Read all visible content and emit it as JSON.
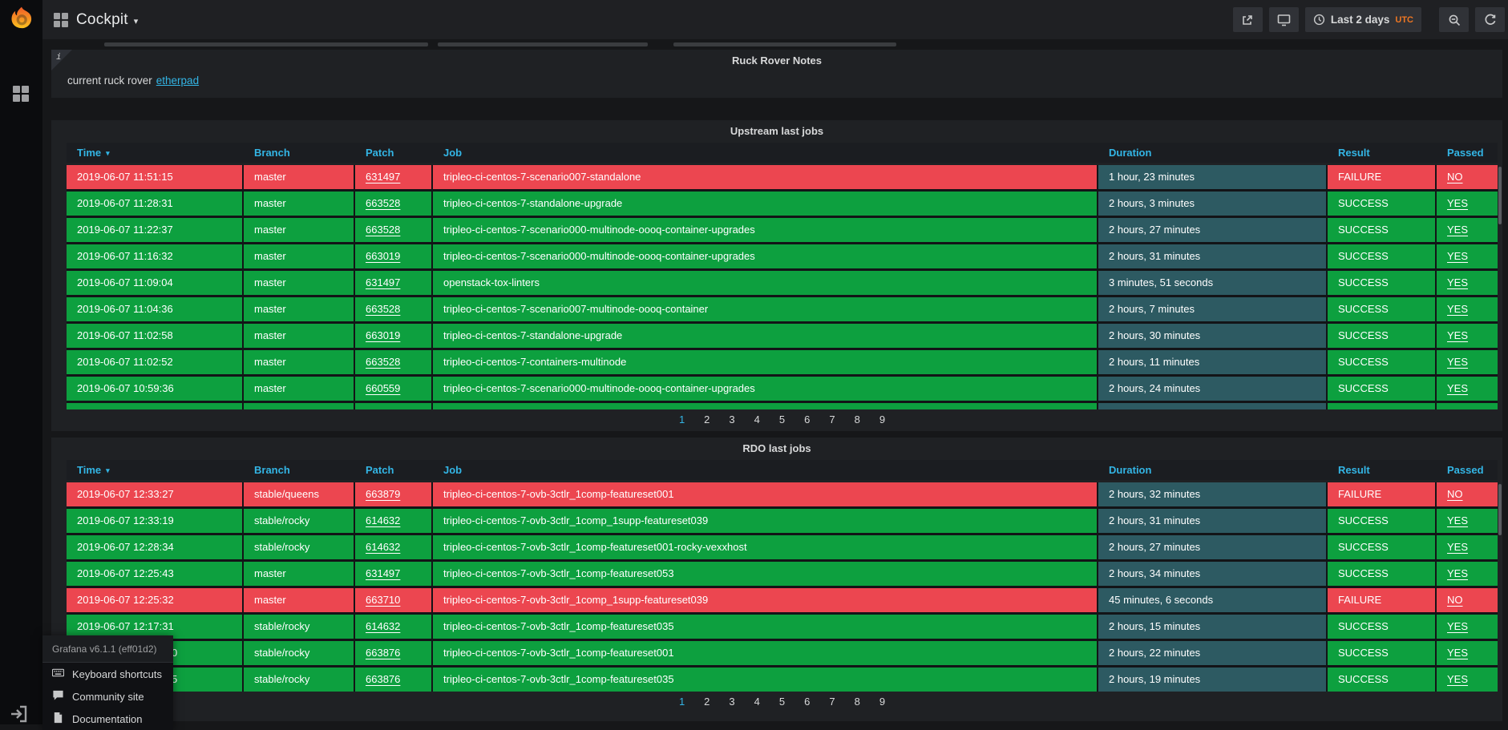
{
  "navbar": {
    "title": "Cockpit",
    "time_range": "Last 2 days",
    "time_zone": "UTC",
    "icons": [
      "dashboard-grid",
      "share",
      "tv-mode",
      "clock",
      "zoom-out",
      "refresh"
    ]
  },
  "sidebar": {
    "icons": [
      "grafana-logo",
      "dashboards",
      "sign-in"
    ]
  },
  "help_menu": {
    "version": "Grafana v6.1.1 (eff01d2)",
    "items": [
      {
        "icon": "keyboard",
        "label": "Keyboard shortcuts"
      },
      {
        "icon": "comment",
        "label": "Community site"
      },
      {
        "icon": "document",
        "label": "Documentation"
      }
    ]
  },
  "colors": {
    "success_green": "#0da03f",
    "failure_red": "#ec4650",
    "duration_teal": "#2d5a62",
    "accent_cyan": "#33b5e5",
    "utc_orange": "#ee7622"
  },
  "panels": {
    "notes": {
      "title": "Ruck Rover Notes",
      "text": "current ruck rover",
      "link": "etherpad"
    },
    "upstream": {
      "title": "Upstream last jobs",
      "columns": [
        "Time",
        "Branch",
        "Patch",
        "Job",
        "Duration",
        "Result",
        "Passed"
      ],
      "sorted_by": "Time",
      "rows": [
        {
          "time": "2019-06-07 11:51:15",
          "branch": "master",
          "patch": "631497",
          "job": "tripleo-ci-centos-7-scenario007-standalone",
          "duration": "1 hour, 23 minutes",
          "result": "FAILURE",
          "passed": "NO",
          "status": "failure"
        },
        {
          "time": "2019-06-07 11:28:31",
          "branch": "master",
          "patch": "663528",
          "job": "tripleo-ci-centos-7-standalone-upgrade",
          "duration": "2 hours, 3 minutes",
          "result": "SUCCESS",
          "passed": "YES",
          "status": "success"
        },
        {
          "time": "2019-06-07 11:22:37",
          "branch": "master",
          "patch": "663528",
          "job": "tripleo-ci-centos-7-scenario000-multinode-oooq-container-upgrades",
          "duration": "2 hours, 27 minutes",
          "result": "SUCCESS",
          "passed": "YES",
          "status": "success"
        },
        {
          "time": "2019-06-07 11:16:32",
          "branch": "master",
          "patch": "663019",
          "job": "tripleo-ci-centos-7-scenario000-multinode-oooq-container-upgrades",
          "duration": "2 hours, 31 minutes",
          "result": "SUCCESS",
          "passed": "YES",
          "status": "success"
        },
        {
          "time": "2019-06-07 11:09:04",
          "branch": "master",
          "patch": "631497",
          "job": "openstack-tox-linters",
          "duration": "3 minutes, 51 seconds",
          "result": "SUCCESS",
          "passed": "YES",
          "status": "success"
        },
        {
          "time": "2019-06-07 11:04:36",
          "branch": "master",
          "patch": "663528",
          "job": "tripleo-ci-centos-7-scenario007-multinode-oooq-container",
          "duration": "2 hours, 7 minutes",
          "result": "SUCCESS",
          "passed": "YES",
          "status": "success"
        },
        {
          "time": "2019-06-07 11:02:58",
          "branch": "master",
          "patch": "663019",
          "job": "tripleo-ci-centos-7-standalone-upgrade",
          "duration": "2 hours, 30 minutes",
          "result": "SUCCESS",
          "passed": "YES",
          "status": "success"
        },
        {
          "time": "2019-06-07 11:02:52",
          "branch": "master",
          "patch": "663528",
          "job": "tripleo-ci-centos-7-containers-multinode",
          "duration": "2 hours, 11 minutes",
          "result": "SUCCESS",
          "passed": "YES",
          "status": "success"
        },
        {
          "time": "2019-06-07 10:59:36",
          "branch": "master",
          "patch": "660559",
          "job": "tripleo-ci-centos-7-scenario000-multinode-oooq-container-upgrades",
          "duration": "2 hours, 24 minutes",
          "result": "SUCCESS",
          "passed": "YES",
          "status": "success"
        }
      ],
      "has_partial_row": true,
      "pagination": [
        "1",
        "2",
        "3",
        "4",
        "5",
        "6",
        "7",
        "8",
        "9"
      ],
      "active_page": "1"
    },
    "rdo": {
      "title": "RDO last jobs",
      "columns": [
        "Time",
        "Branch",
        "Patch",
        "Job",
        "Duration",
        "Result",
        "Passed"
      ],
      "sorted_by": "Time",
      "rows": [
        {
          "time": "2019-06-07 12:33:27",
          "branch": "stable/queens",
          "patch": "663879",
          "job": "tripleo-ci-centos-7-ovb-3ctlr_1comp-featureset001",
          "duration": "2 hours, 32 minutes",
          "result": "FAILURE",
          "passed": "NO",
          "status": "failure"
        },
        {
          "time": "2019-06-07 12:33:19",
          "branch": "stable/rocky",
          "patch": "614632",
          "job": "tripleo-ci-centos-7-ovb-3ctlr_1comp_1supp-featureset039",
          "duration": "2 hours, 31 minutes",
          "result": "SUCCESS",
          "passed": "YES",
          "status": "success"
        },
        {
          "time": "2019-06-07 12:28:34",
          "branch": "stable/rocky",
          "patch": "614632",
          "job": "tripleo-ci-centos-7-ovb-3ctlr_1comp-featureset001-rocky-vexxhost",
          "duration": "2 hours, 27 minutes",
          "result": "SUCCESS",
          "passed": "YES",
          "status": "success"
        },
        {
          "time": "2019-06-07 12:25:43",
          "branch": "master",
          "patch": "631497",
          "job": "tripleo-ci-centos-7-ovb-3ctlr_1comp-featureset053",
          "duration": "2 hours, 34 minutes",
          "result": "SUCCESS",
          "passed": "YES",
          "status": "success"
        },
        {
          "time": "2019-06-07 12:25:32",
          "branch": "master",
          "patch": "663710",
          "job": "tripleo-ci-centos-7-ovb-3ctlr_1comp_1supp-featureset039",
          "duration": "45 minutes, 6 seconds",
          "result": "FAILURE",
          "passed": "NO",
          "status": "failure"
        },
        {
          "time": "2019-06-07 12:17:31",
          "branch": "stable/rocky",
          "patch": "614632",
          "job": "tripleo-ci-centos-7-ovb-3ctlr_1comp-featureset035",
          "duration": "2 hours, 15 minutes",
          "result": "SUCCESS",
          "passed": "YES",
          "status": "success"
        },
        {
          "time": "0",
          "time_obscured": true,
          "branch": "stable/rocky",
          "patch": "663876",
          "job": "tripleo-ci-centos-7-ovb-3ctlr_1comp-featureset001",
          "duration": "2 hours, 22 minutes",
          "result": "SUCCESS",
          "passed": "YES",
          "status": "success"
        },
        {
          "time": "5",
          "time_obscured": true,
          "branch": "stable/rocky",
          "patch": "663876",
          "job": "tripleo-ci-centos-7-ovb-3ctlr_1comp-featureset035",
          "duration": "2 hours, 19 minutes",
          "result": "SUCCESS",
          "passed": "YES",
          "status": "success"
        }
      ],
      "has_partial_row": false,
      "pagination": [
        "1",
        "2",
        "3",
        "4",
        "5",
        "6",
        "7",
        "8",
        "9"
      ],
      "active_page": "1"
    }
  }
}
